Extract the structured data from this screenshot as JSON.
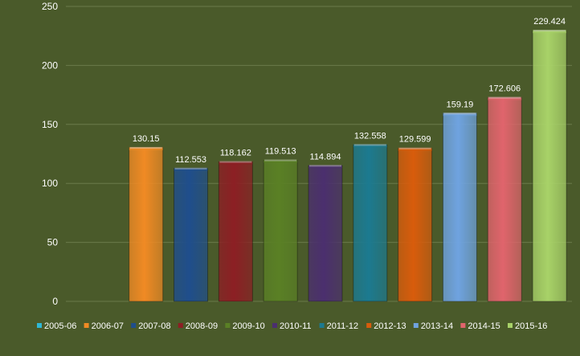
{
  "chart_data": {
    "type": "bar",
    "title": "",
    "xlabel": "",
    "ylabel": "",
    "ylim": [
      0,
      250
    ],
    "yticks": [
      0,
      50,
      100,
      150,
      200,
      250
    ],
    "grid": true,
    "legend_position": "bottom",
    "categories": [
      "2005-06",
      "2006-07",
      "2007-08",
      "2008-09",
      "2009-10",
      "2010-11",
      "2011-12",
      "2012-13",
      "2013-14",
      "2014-15",
      "2015-16"
    ],
    "values": [
      null,
      130.15,
      112.553,
      118.162,
      119.513,
      114.894,
      132.558,
      129.599,
      159.19,
      172.606,
      229.424
    ],
    "data_labels": [
      "",
      "130.15",
      "112.553",
      "118.162",
      "119.513",
      "114.894",
      "132.558",
      "129.599",
      "159.19",
      "172.606",
      "229.424"
    ],
    "colors": [
      "#2fb8d6",
      "#f08a24",
      "#1f4e8c",
      "#8c1f24",
      "#5a8025",
      "#4b2f6e",
      "#1c7a90",
      "#d85c0c",
      "#6fa3e0",
      "#e0646c",
      "#a8d268"
    ],
    "background": "#4a5a2a",
    "gridline_color": "#6b7a4a",
    "text_color": "#ffffff"
  }
}
